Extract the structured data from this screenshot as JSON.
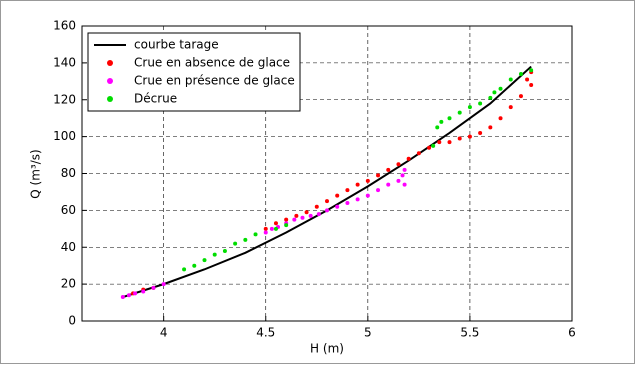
{
  "chart_data": {
    "type": "scatter",
    "xlabel": "H (m)",
    "ylabel": "Q (m³/s)",
    "xlim": [
      3.6,
      6
    ],
    "xticks": [
      4,
      4.5,
      5,
      5.5,
      6
    ],
    "ylim": [
      0,
      160
    ],
    "yticks": [
      0,
      20,
      40,
      60,
      80,
      100,
      120,
      140,
      160
    ],
    "grid": true,
    "legend": "upper-left",
    "series": [
      {
        "name": "courbe tarage",
        "color": "#000000",
        "style": "line",
        "x": [
          3.8,
          4.0,
          4.2,
          4.4,
          4.6,
          4.8,
          5.0,
          5.2,
          5.4,
          5.6,
          5.8
        ],
        "values": [
          13,
          20,
          28,
          37,
          48,
          60,
          73,
          87,
          102,
          118,
          138
        ]
      },
      {
        "name": "Crue en absence de glace",
        "color": "#ff0000",
        "style": "marker",
        "x": [
          3.85,
          3.9,
          3.95,
          4.5,
          4.55,
          4.6,
          4.65,
          4.7,
          4.75,
          4.8,
          4.85,
          4.9,
          4.95,
          5.0,
          5.05,
          5.1,
          5.15,
          5.2,
          5.25,
          5.3,
          5.35,
          5.4,
          5.45,
          5.5,
          5.55,
          5.6,
          5.65,
          5.7,
          5.75,
          5.8,
          5.8,
          5.78
        ],
        "values": [
          15,
          17,
          18,
          50,
          53,
          55,
          57,
          59,
          62,
          65,
          68,
          71,
          74,
          76,
          79,
          82,
          85,
          88,
          91,
          94,
          97,
          97,
          99,
          100,
          102,
          105,
          110,
          116,
          122,
          128,
          135,
          131
        ]
      },
      {
        "name": "Crue en présence de glace",
        "color": "#ff00ff",
        "style": "marker",
        "x": [
          3.8,
          3.83,
          3.86,
          3.9,
          3.95,
          4.0,
          4.5,
          4.53,
          4.56,
          4.6,
          4.64,
          4.68,
          4.72,
          4.76,
          4.8,
          4.85,
          4.9,
          4.95,
          5.0,
          5.05,
          5.1,
          5.15,
          5.17,
          5.18,
          5.18
        ],
        "values": [
          13,
          14,
          15,
          16,
          18,
          20,
          48,
          50,
          51,
          53,
          55,
          56,
          57,
          58,
          60,
          62,
          64,
          66,
          68,
          71,
          74,
          76,
          79,
          82,
          74
        ]
      },
      {
        "name": "Décrue",
        "color": "#00dd00",
        "style": "marker",
        "x": [
          4.1,
          4.15,
          4.2,
          4.25,
          4.3,
          4.35,
          4.4,
          4.45,
          4.55,
          4.6,
          5.32,
          5.34,
          5.36,
          5.4,
          5.45,
          5.5,
          5.55,
          5.6,
          5.62,
          5.65,
          5.7,
          5.75,
          5.8
        ],
        "values": [
          28,
          30,
          33,
          36,
          38,
          42,
          44,
          47,
          50,
          52,
          95,
          105,
          108,
          110,
          113,
          116,
          118,
          121,
          124,
          126,
          131,
          134,
          136
        ]
      }
    ]
  }
}
